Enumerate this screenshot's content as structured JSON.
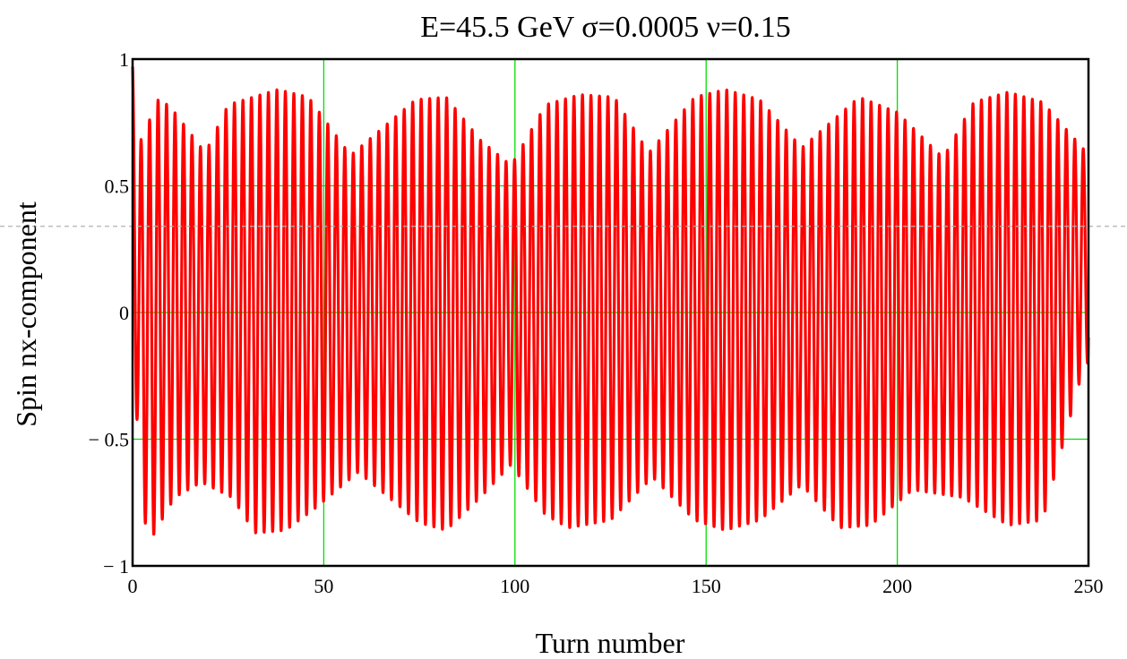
{
  "chart_data": {
    "type": "line",
    "title": "E=45.5 GeV   σ=0.0005   ν=0.15",
    "xlabel": "Turn number",
    "ylabel": "Spin nx-component",
    "xlim": [
      0,
      250
    ],
    "ylim": [
      -1,
      1
    ],
    "grid": true,
    "grid_color": "#00e000",
    "line_color": "#ff0000",
    "x_ticks": [
      0,
      50,
      100,
      150,
      200,
      250
    ],
    "x_tick_labels": [
      "0",
      "50",
      "100",
      "150",
      "200",
      "250"
    ],
    "y_ticks": [
      -1,
      -0.5,
      0,
      0.5,
      1
    ],
    "y_tick_labels": [
      "− 1",
      "− 0.5",
      "0",
      "0.5",
      "1"
    ],
    "reference_line_y": 0.34,
    "series": [
      {
        "turns": [
          0,
          250
        ],
        "oscillation_period_turns": 2.22,
        "upper_envelope": [
          [
            0,
            0.97
          ],
          [
            1,
            0.64
          ],
          [
            7,
            0.85
          ],
          [
            11,
            0.79
          ],
          [
            19,
            0.63
          ],
          [
            25,
            0.82
          ],
          [
            38,
            0.88
          ],
          [
            46,
            0.85
          ],
          [
            57,
            0.62
          ],
          [
            74,
            0.84
          ],
          [
            82,
            0.85
          ],
          [
            91,
            0.68
          ],
          [
            99,
            0.58
          ],
          [
            108,
            0.82
          ],
          [
            117,
            0.86
          ],
          [
            126,
            0.85
          ],
          [
            135,
            0.63
          ],
          [
            147,
            0.85
          ],
          [
            155,
            0.88
          ],
          [
            164,
            0.84
          ],
          [
            175,
            0.65
          ],
          [
            190,
            0.85
          ],
          [
            200,
            0.79
          ],
          [
            212,
            0.61
          ],
          [
            220,
            0.83
          ],
          [
            229,
            0.87
          ],
          [
            238,
            0.83
          ],
          [
            249,
            0.64
          ]
        ],
        "lower_envelope": [
          [
            0,
            -0.18
          ],
          [
            3,
            -0.82
          ],
          [
            5,
            -0.89
          ],
          [
            11,
            -0.73
          ],
          [
            18,
            -0.67
          ],
          [
            26,
            -0.73
          ],
          [
            32,
            -0.87
          ],
          [
            40,
            -0.86
          ],
          [
            48,
            -0.77
          ],
          [
            59,
            -0.63
          ],
          [
            75,
            -0.83
          ],
          [
            82,
            -0.86
          ],
          [
            91,
            -0.73
          ],
          [
            99,
            -0.6
          ],
          [
            108,
            -0.8
          ],
          [
            114,
            -0.85
          ],
          [
            125,
            -0.82
          ],
          [
            136,
            -0.65
          ],
          [
            147,
            -0.82
          ],
          [
            155,
            -0.86
          ],
          [
            164,
            -0.82
          ],
          [
            175,
            -0.68
          ],
          [
            185,
            -0.85
          ],
          [
            193,
            -0.84
          ],
          [
            204,
            -0.7
          ],
          [
            217,
            -0.73
          ],
          [
            229,
            -0.84
          ],
          [
            238,
            -0.82
          ],
          [
            249,
            -0.2
          ]
        ]
      }
    ]
  }
}
